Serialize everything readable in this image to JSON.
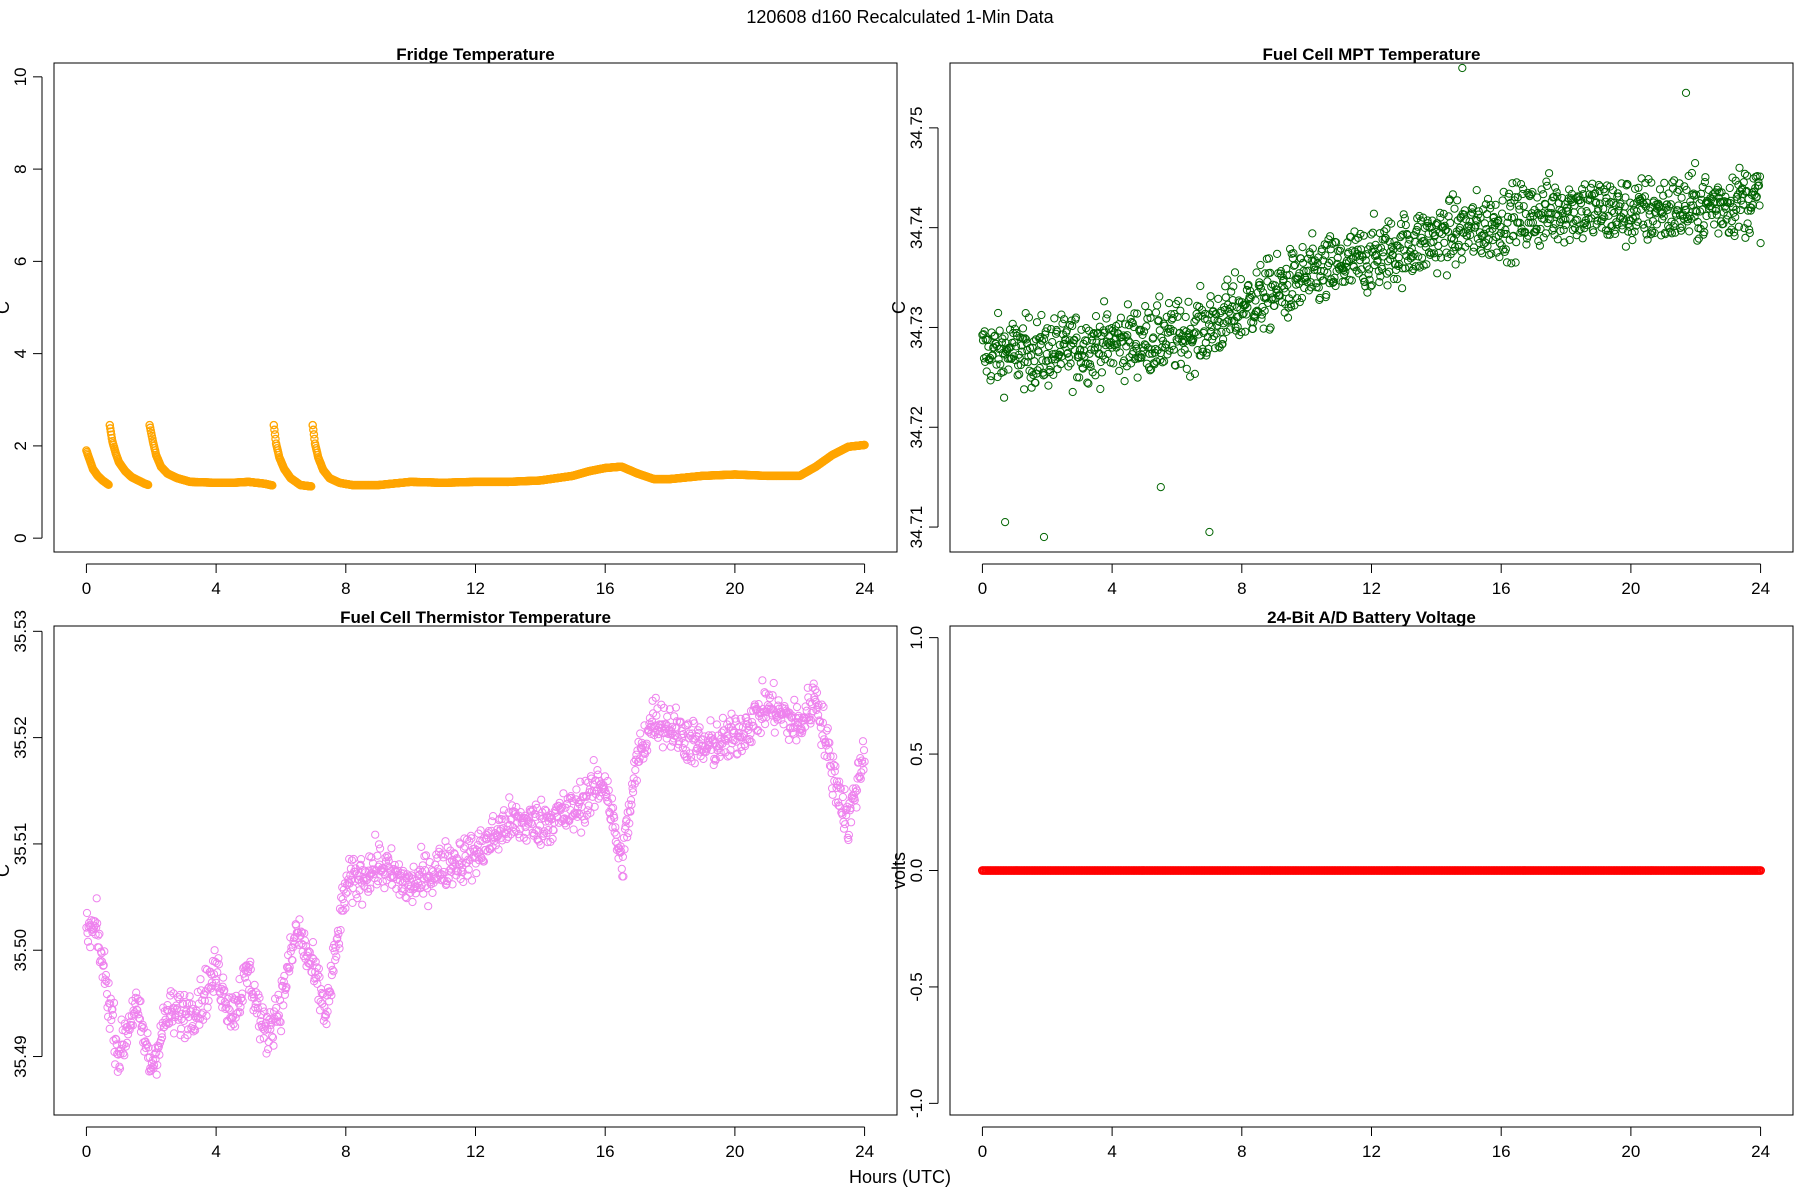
{
  "figure": {
    "suptitle": "120608   d160   Recalculated 1-Min Data",
    "common_xlabel": "Hours (UTC)"
  },
  "chart_data": [
    {
      "type": "scatter",
      "title": "Fridge Temperature",
      "xlabel": "",
      "ylabel": "C",
      "xlim": [
        -1,
        25
      ],
      "ylim": [
        -0.3,
        10.3
      ],
      "xticks": [
        0,
        4,
        8,
        12,
        16,
        20,
        24
      ],
      "xtick_labels": [
        "0",
        "4",
        "8",
        "12",
        "16",
        "20",
        "24"
      ],
      "yticks": [
        0,
        2,
        4,
        6,
        8,
        10
      ],
      "ytick_labels": [
        "0",
        "2",
        "4",
        "6",
        "8",
        "10"
      ],
      "color": "#ffa500",
      "grid": false,
      "series": [
        {
          "name": "fridge",
          "x": [
            0.0,
            0.1,
            0.2,
            0.35,
            0.5,
            0.7,
            0.72,
            0.8,
            0.9,
            1.0,
            1.2,
            1.4,
            1.6,
            1.8,
            1.92,
            1.95,
            2.05,
            2.15,
            2.3,
            2.5,
            2.8,
            3.2,
            4.0,
            4.5,
            5.0,
            5.5,
            5.75,
            5.78,
            5.85,
            5.95,
            6.1,
            6.3,
            6.6,
            6.95,
            6.98,
            7.05,
            7.15,
            7.3,
            7.5,
            7.8,
            8.2,
            9.0,
            10.0,
            11.0,
            12.0,
            13.0,
            14.0,
            15.0,
            15.5,
            16.0,
            16.5,
            17.0,
            17.5,
            18.0,
            19.0,
            20.0,
            21.0,
            22.0,
            22.5,
            23.0,
            23.5,
            24.0
          ],
          "y": [
            1.9,
            1.7,
            1.5,
            1.35,
            1.25,
            1.15,
            2.45,
            2.1,
            1.85,
            1.65,
            1.45,
            1.32,
            1.25,
            1.18,
            1.15,
            2.45,
            2.1,
            1.8,
            1.55,
            1.4,
            1.3,
            1.22,
            1.2,
            1.2,
            1.22,
            1.18,
            1.14,
            2.45,
            2.05,
            1.75,
            1.5,
            1.3,
            1.15,
            1.12,
            2.45,
            2.05,
            1.75,
            1.48,
            1.3,
            1.2,
            1.15,
            1.15,
            1.22,
            1.2,
            1.22,
            1.22,
            1.25,
            1.35,
            1.45,
            1.52,
            1.55,
            1.4,
            1.28,
            1.28,
            1.35,
            1.38,
            1.35,
            1.35,
            1.55,
            1.8,
            1.98,
            2.02
          ]
        }
      ]
    },
    {
      "type": "scatter",
      "title": "Fuel Cell MPT Temperature",
      "xlabel": "",
      "ylabel": "C",
      "xlim": [
        -1,
        25
      ],
      "ylim": [
        34.7075,
        34.7565
      ],
      "xticks": [
        0,
        4,
        8,
        12,
        16,
        20,
        24
      ],
      "xtick_labels": [
        "0",
        "4",
        "8",
        "12",
        "16",
        "20",
        "24"
      ],
      "yticks": [
        34.71,
        34.72,
        34.73,
        34.74,
        34.75
      ],
      "ytick_labels": [
        "34.71",
        "34.72",
        "34.73",
        "34.74",
        "34.75"
      ],
      "color": "#006400",
      "grid": false,
      "series": [
        {
          "name": "mpt",
          "trend_x": [
            0,
            2,
            4,
            6,
            7,
            8,
            10,
            12,
            14,
            16,
            18,
            20,
            22,
            24
          ],
          "trend_y": [
            34.7275,
            34.7275,
            34.7285,
            34.729,
            34.73,
            34.732,
            34.735,
            34.737,
            34.739,
            34.7405,
            34.742,
            34.7415,
            34.742,
            34.743
          ],
          "spread": 0.0035,
          "outliers_x": [
            0.7,
            1.9,
            7.0,
            5.5,
            14.8,
            21.7
          ],
          "outliers_y": [
            34.7105,
            34.709,
            34.7095,
            34.714,
            34.756,
            34.7535
          ]
        }
      ]
    },
    {
      "type": "scatter",
      "title": "Fuel Cell Thermistor Temperature",
      "xlabel": "",
      "ylabel": "C",
      "xlim": [
        -1,
        25
      ],
      "ylim": [
        35.4845,
        35.5305
      ],
      "xticks": [
        0,
        4,
        8,
        12,
        16,
        20,
        24
      ],
      "xtick_labels": [
        "0",
        "4",
        "8",
        "12",
        "16",
        "20",
        "24"
      ],
      "yticks": [
        35.49,
        35.5,
        35.51,
        35.52,
        35.53
      ],
      "ytick_labels": [
        "35.49",
        "35.50",
        "35.51",
        "35.52",
        "35.53"
      ],
      "color": "#ee82ee",
      "grid": false,
      "series": [
        {
          "name": "thermistor",
          "trend_x": [
            0,
            0.3,
            0.6,
            1.0,
            1.5,
            2.0,
            2.5,
            3.0,
            3.5,
            4.0,
            4.5,
            5.0,
            5.5,
            6.0,
            6.5,
            7.0,
            7.4,
            8.0,
            9.0,
            10.0,
            11.0,
            12.0,
            13.0,
            14.0,
            15.0,
            16.0,
            16.5,
            17.0,
            17.5,
            18.0,
            19.0,
            20.0,
            21.0,
            22.0,
            22.5,
            23.0,
            23.5,
            24.0
          ],
          "trend_y": [
            35.5015,
            35.502,
            35.497,
            35.49,
            35.495,
            35.489,
            35.494,
            35.494,
            35.495,
            35.498,
            35.494,
            35.498,
            35.492,
            35.495,
            35.502,
            35.498,
            35.494,
            35.506,
            35.508,
            35.506,
            35.508,
            35.509,
            35.512,
            35.512,
            35.513,
            35.516,
            35.508,
            35.518,
            35.522,
            35.521,
            35.519,
            35.52,
            35.523,
            35.521,
            35.524,
            35.517,
            35.512,
            35.519
          ],
          "spread": 0.0022
        }
      ]
    },
    {
      "type": "scatter",
      "title": "24-Bit A/D Battery Voltage",
      "xlabel": "",
      "ylabel": "volts",
      "xlim": [
        -1,
        25
      ],
      "ylim": [
        -1.05,
        1.05
      ],
      "xticks": [
        0,
        4,
        8,
        12,
        16,
        20,
        24
      ],
      "xtick_labels": [
        "0",
        "4",
        "8",
        "12",
        "16",
        "20",
        "24"
      ],
      "yticks": [
        -1.0,
        -0.5,
        0.0,
        0.5,
        1.0
      ],
      "ytick_labels": [
        "-1.0",
        "-0.5",
        "0.0",
        "0.5",
        "1.0"
      ],
      "color": "#ff0000",
      "grid": false,
      "series": [
        {
          "name": "battery",
          "x": [
            0,
            24
          ],
          "y": [
            0,
            0
          ]
        }
      ]
    }
  ]
}
